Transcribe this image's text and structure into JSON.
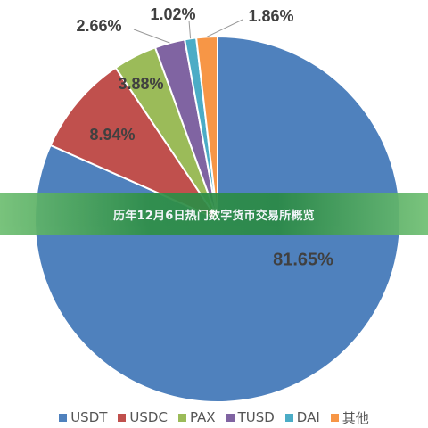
{
  "banner": {
    "text": "历年12月6日热门数字货币交易所概览"
  },
  "chart_data": {
    "type": "pie",
    "slices": [
      {
        "name": "USDT",
        "value": 81.65,
        "label": "81.65%",
        "color": "#4f81bd"
      },
      {
        "name": "USDC",
        "value": 8.94,
        "label": "8.94%",
        "color": "#c0504d"
      },
      {
        "name": "PAX",
        "value": 3.88,
        "label": "3.88%",
        "color": "#9bbb59"
      },
      {
        "name": "TUSD",
        "value": 2.66,
        "label": "2.66%",
        "color": "#8064a2"
      },
      {
        "name": "DAI",
        "value": 1.02,
        "label": "1.02%",
        "color": "#4bacc6"
      },
      {
        "name": "其他",
        "value": 1.86,
        "label": "1.86%",
        "color": "#f79646"
      }
    ],
    "start": "12 o'clock",
    "direction": "clockwise",
    "legend_position": "bottom"
  }
}
